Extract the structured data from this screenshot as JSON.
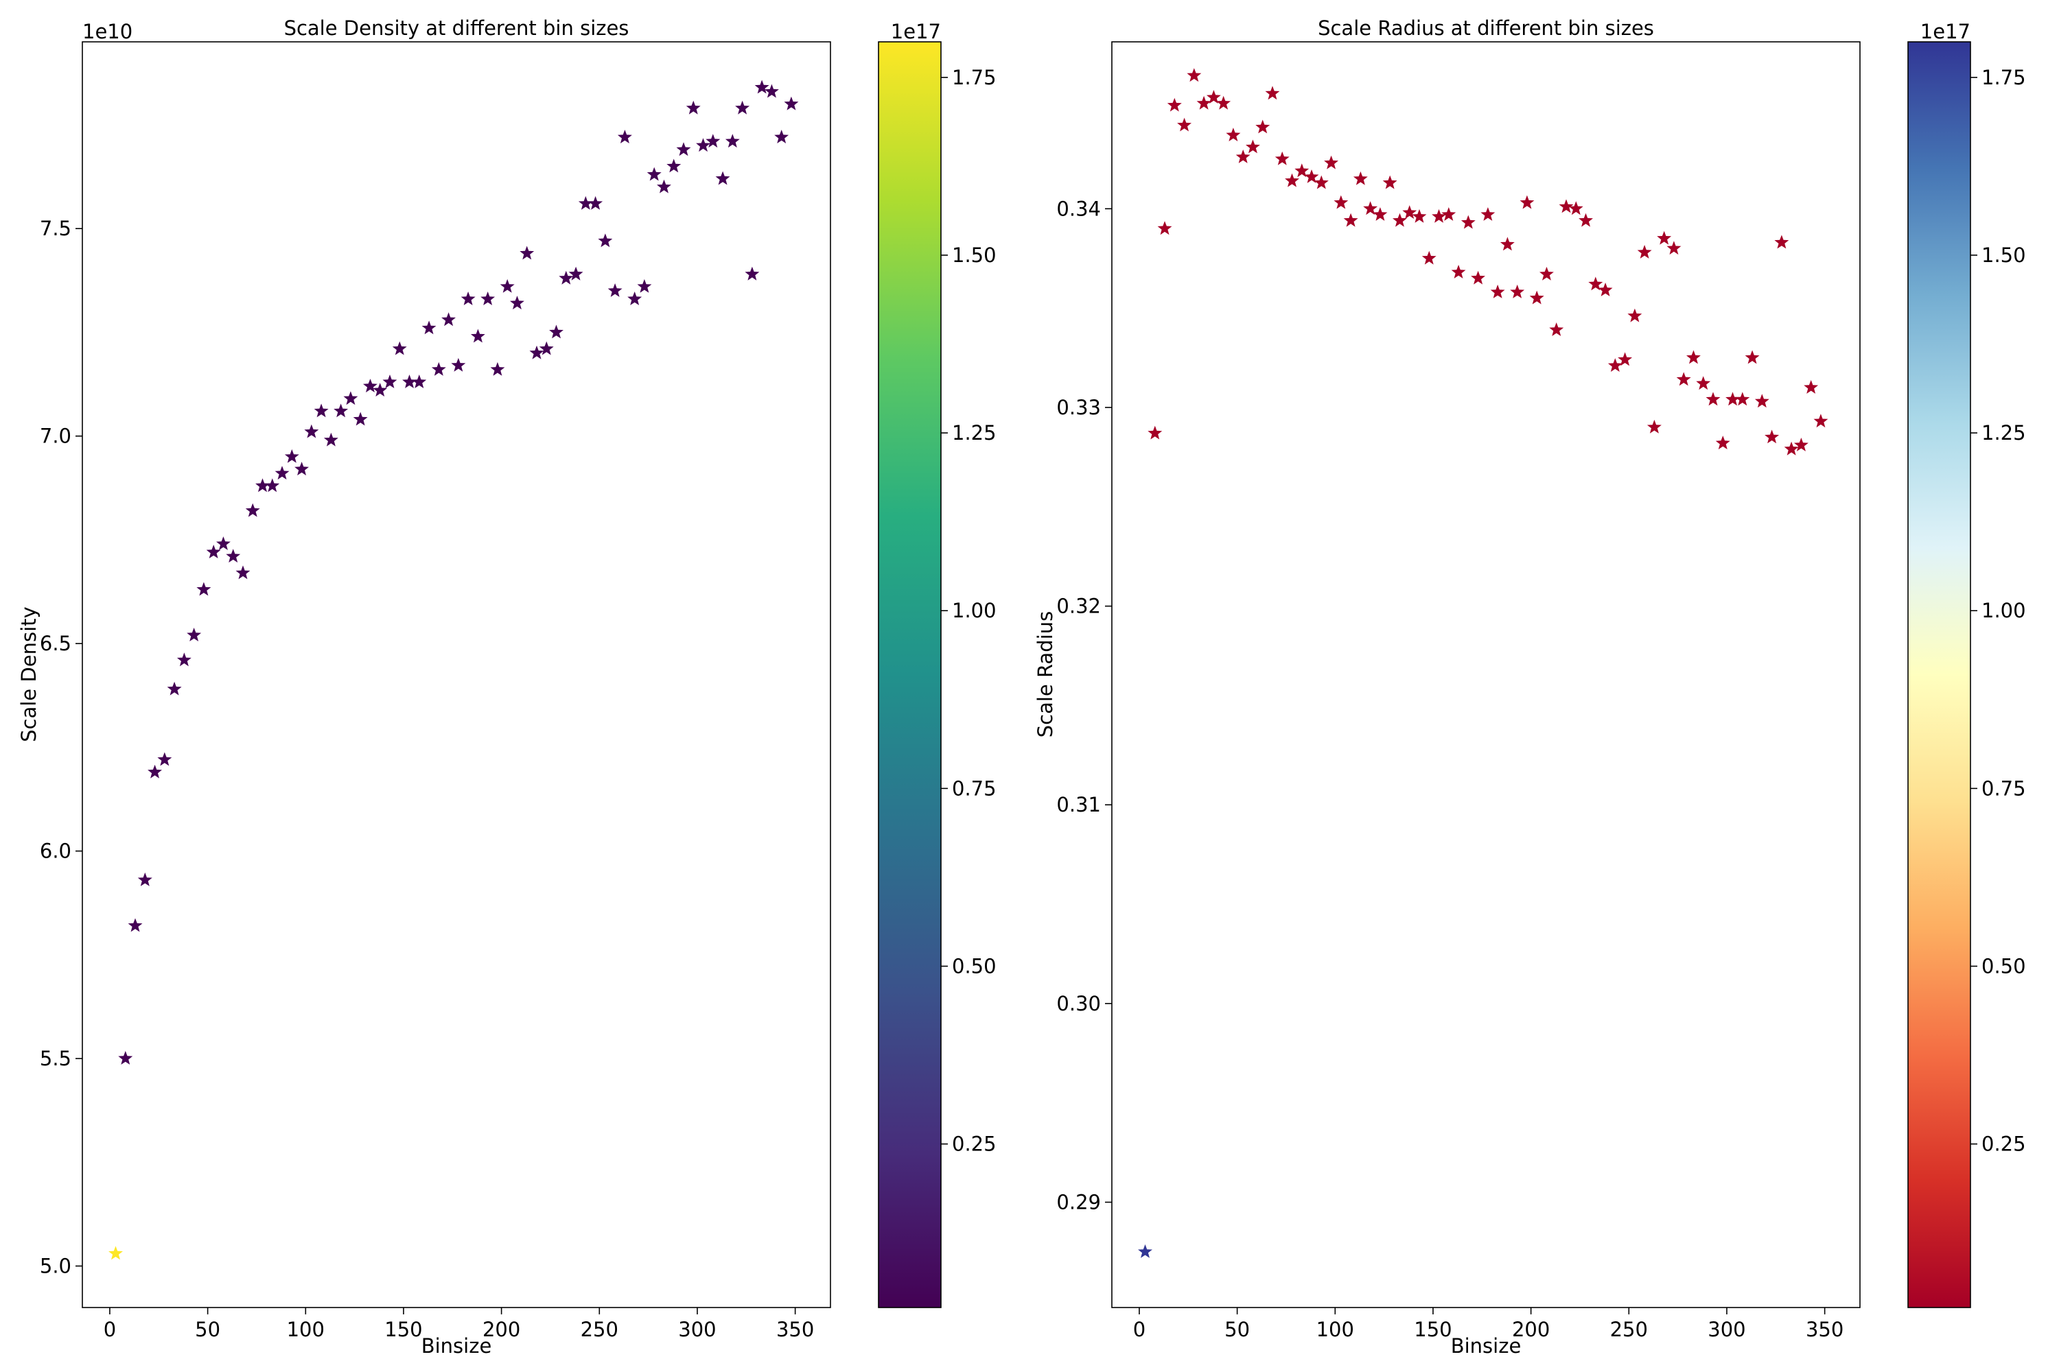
{
  "chart_data": [
    {
      "type": "scatter",
      "title": "Scale Density at different bin sizes",
      "xlabel": "Binsize",
      "ylabel": "Scale Density",
      "y_offset_label": "1e10",
      "xlim": [
        -14,
        368
      ],
      "ylim": [
        4.9,
        7.95
      ],
      "x_ticks": [
        0,
        50,
        100,
        150,
        200,
        250,
        300,
        350
      ],
      "y_ticks": [
        5.0,
        5.5,
        6.0,
        6.5,
        7.0,
        7.5
      ],
      "y_tick_labels": [
        "5.0",
        "5.5",
        "6.0",
        "6.5",
        "7.0",
        "7.5"
      ],
      "marker": "star",
      "colormap": "viridis",
      "colorbar": {
        "offset_label": "1e17",
        "range": [
          0.02,
          1.8
        ],
        "ticks": [
          0.25,
          0.5,
          0.75,
          1.0,
          1.25,
          1.5,
          1.75
        ],
        "tick_labels": [
          "0.25",
          "0.50",
          "0.75",
          "1.00",
          "1.25",
          "1.50",
          "1.75"
        ]
      },
      "x": [
        3,
        8,
        13,
        18,
        23,
        28,
        33,
        38,
        43,
        48,
        53,
        58,
        63,
        68,
        73,
        78,
        83,
        88,
        93,
        98,
        103,
        108,
        113,
        118,
        123,
        128,
        133,
        138,
        143,
        148,
        153,
        158,
        163,
        168,
        173,
        178,
        183,
        188,
        193,
        198,
        203,
        208,
        213,
        218,
        223,
        228,
        233,
        238,
        243,
        248,
        253,
        258,
        263,
        268,
        273,
        278,
        283,
        288,
        293,
        298,
        303,
        308,
        313,
        318,
        323,
        328,
        333,
        338,
        343,
        348
      ],
      "y": [
        5.03,
        5.5,
        5.82,
        5.93,
        6.19,
        6.22,
        6.39,
        6.46,
        6.52,
        6.63,
        6.72,
        6.74,
        6.71,
        6.67,
        6.82,
        6.88,
        6.88,
        6.91,
        6.95,
        6.92,
        7.01,
        7.06,
        6.99,
        7.06,
        7.09,
        7.04,
        7.12,
        7.11,
        7.13,
        7.21,
        7.13,
        7.13,
        7.26,
        7.16,
        7.28,
        7.17,
        7.33,
        7.24,
        7.33,
        7.16,
        7.36,
        7.32,
        7.44,
        7.2,
        7.21,
        7.25,
        7.38,
        7.39,
        7.56,
        7.56,
        7.47,
        7.35,
        7.72,
        7.33,
        7.36,
        7.63,
        7.6,
        7.65,
        7.69,
        7.79,
        7.7,
        7.71,
        7.62,
        7.71,
        7.79,
        7.39,
        7.84,
        7.83,
        7.72,
        7.8
      ],
      "c": [
        1.8,
        0.02,
        0.02,
        0.02,
        0.02,
        0.02,
        0.02,
        0.02,
        0.02,
        0.02,
        0.02,
        0.02,
        0.02,
        0.02,
        0.02,
        0.02,
        0.02,
        0.02,
        0.02,
        0.02,
        0.02,
        0.02,
        0.02,
        0.02,
        0.02,
        0.02,
        0.02,
        0.02,
        0.02,
        0.02,
        0.02,
        0.02,
        0.02,
        0.02,
        0.02,
        0.02,
        0.02,
        0.02,
        0.02,
        0.02,
        0.02,
        0.02,
        0.02,
        0.02,
        0.02,
        0.02,
        0.02,
        0.02,
        0.02,
        0.02,
        0.02,
        0.02,
        0.02,
        0.02,
        0.02,
        0.02,
        0.02,
        0.02,
        0.02,
        0.02,
        0.02,
        0.02,
        0.02,
        0.02,
        0.02,
        0.02,
        0.02,
        0.02,
        0.02,
        0.02
      ]
    },
    {
      "type": "scatter",
      "title": "Scale Radius at different bin sizes",
      "xlabel": "Binsize",
      "ylabel": "Scale Radius",
      "y_offset_label": "",
      "xlim": [
        -14,
        368
      ],
      "ylim": [
        0.2847,
        0.3484
      ],
      "x_ticks": [
        0,
        50,
        100,
        150,
        200,
        250,
        300,
        350
      ],
      "y_ticks": [
        0.29,
        0.3,
        0.31,
        0.32,
        0.33,
        0.34
      ],
      "y_tick_labels": [
        "0.29",
        "0.30",
        "0.31",
        "0.32",
        "0.33",
        "0.34"
      ],
      "marker": "star",
      "colormap": "RdYlBu",
      "colorbar": {
        "offset_label": "1e17",
        "range": [
          0.02,
          1.8
        ],
        "ticks": [
          0.25,
          0.5,
          0.75,
          1.0,
          1.25,
          1.5,
          1.75
        ],
        "tick_labels": [
          "0.25",
          "0.50",
          "0.75",
          "1.00",
          "1.25",
          "1.50",
          "1.75"
        ]
      },
      "x": [
        3,
        8,
        13,
        18,
        23,
        28,
        33,
        38,
        43,
        48,
        53,
        58,
        63,
        68,
        73,
        78,
        83,
        88,
        93,
        98,
        103,
        108,
        113,
        118,
        123,
        128,
        133,
        138,
        143,
        148,
        153,
        158,
        163,
        168,
        173,
        178,
        183,
        188,
        193,
        198,
        203,
        208,
        213,
        218,
        223,
        228,
        233,
        238,
        243,
        248,
        253,
        258,
        263,
        268,
        273,
        278,
        283,
        288,
        293,
        298,
        303,
        308,
        313,
        318,
        323,
        328,
        333,
        338,
        343,
        348
      ],
      "y": [
        0.2875,
        0.3287,
        0.339,
        0.3452,
        0.3442,
        0.3467,
        0.3453,
        0.3456,
        0.3453,
        0.3437,
        0.3426,
        0.3431,
        0.3441,
        0.3458,
        0.3425,
        0.3414,
        0.3419,
        0.3416,
        0.3413,
        0.3423,
        0.3403,
        0.3394,
        0.3415,
        0.34,
        0.3397,
        0.3413,
        0.3394,
        0.3398,
        0.3396,
        0.3375,
        0.3396,
        0.3397,
        0.3368,
        0.3393,
        0.3365,
        0.3397,
        0.3358,
        0.3382,
        0.3358,
        0.3403,
        0.3355,
        0.3367,
        0.3339,
        0.3401,
        0.34,
        0.3394,
        0.3362,
        0.3359,
        0.3321,
        0.3324,
        0.3346,
        0.3378,
        0.329,
        0.3385,
        0.338,
        0.3314,
        0.3325,
        0.3312,
        0.3304,
        0.3282,
        0.3304,
        0.3304,
        0.3325,
        0.3303,
        0.3285,
        0.3383,
        0.3279,
        0.3281,
        0.331,
        0.3293
      ],
      "c": [
        1.8,
        0.02,
        0.02,
        0.02,
        0.02,
        0.02,
        0.02,
        0.02,
        0.02,
        0.02,
        0.02,
        0.02,
        0.02,
        0.02,
        0.02,
        0.02,
        0.02,
        0.02,
        0.02,
        0.02,
        0.02,
        0.02,
        0.02,
        0.02,
        0.02,
        0.02,
        0.02,
        0.02,
        0.02,
        0.02,
        0.02,
        0.02,
        0.02,
        0.02,
        0.02,
        0.02,
        0.02,
        0.02,
        0.02,
        0.02,
        0.02,
        0.02,
        0.02,
        0.02,
        0.02,
        0.02,
        0.02,
        0.02,
        0.02,
        0.02,
        0.02,
        0.02,
        0.02,
        0.02,
        0.02,
        0.02,
        0.02,
        0.02,
        0.02,
        0.02,
        0.02,
        0.02,
        0.02,
        0.02,
        0.02,
        0.02,
        0.02,
        0.02,
        0.02,
        0.02
      ]
    }
  ]
}
